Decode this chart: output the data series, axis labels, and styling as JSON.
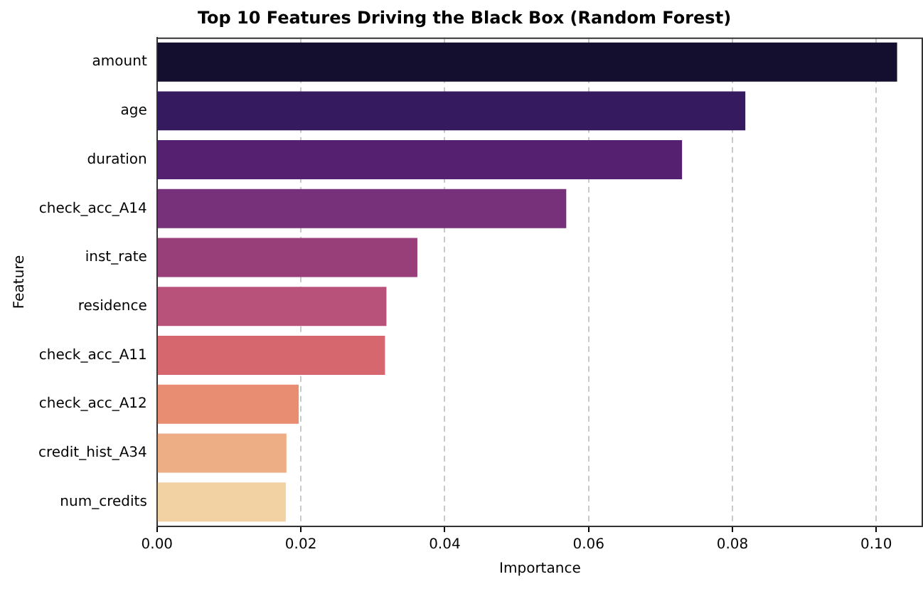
{
  "chart_data": {
    "type": "bar",
    "orientation": "horizontal",
    "title": "Top 10 Features Driving the Black Box (Random Forest)",
    "xlabel": "Importance",
    "ylabel": "Feature",
    "categories": [
      "amount",
      "age",
      "duration",
      "check_acc_A14",
      "inst_rate",
      "residence",
      "check_acc_A11",
      "check_acc_A12",
      "credit_hist_A34",
      "num_credits"
    ],
    "values": [
      0.1029,
      0.0818,
      0.073,
      0.0569,
      0.0362,
      0.0319,
      0.0317,
      0.0197,
      0.018,
      0.0179
    ],
    "colors": [
      "#150f2f",
      "#361a5f",
      "#54206f",
      "#77307a",
      "#983f7a",
      "#b9527b",
      "#d7676f",
      "#e98d72",
      "#edae85",
      "#f2d1a2"
    ],
    "xlim": [
      0,
      0.1065
    ],
    "xticks": [
      {
        "value": 0,
        "label": "0.00"
      },
      {
        "value": 0.02,
        "label": "0.02"
      },
      {
        "value": 0.04,
        "label": "0.04"
      },
      {
        "value": 0.06,
        "label": "0.06"
      },
      {
        "value": 0.08,
        "label": "0.08"
      },
      {
        "value": 0.1,
        "label": "0.10"
      }
    ],
    "grid": "x",
    "line_style": "dashed"
  }
}
